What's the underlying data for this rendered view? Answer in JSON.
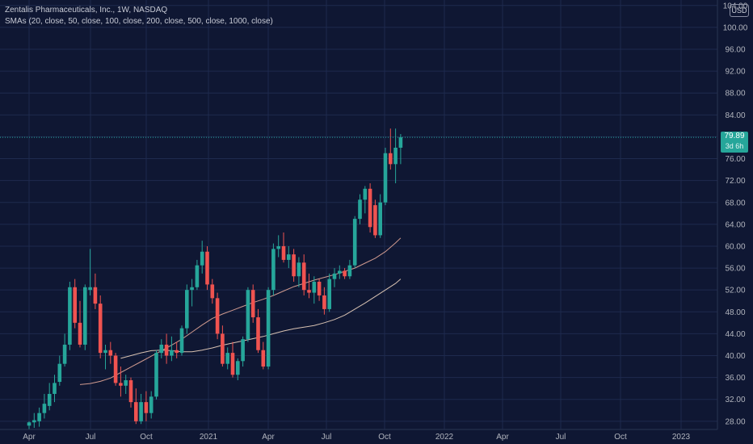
{
  "chart_data": {
    "type": "candlestick",
    "title": "Zentalis Pharmaceuticals, Inc., 1W, NASDAQ",
    "indicator_label": "SMAs (20, close, 50, close, 100, close, 200, close, 500, close, 1000, close)",
    "currency": "USD",
    "last_price": "79.89",
    "countdown": "3d 6h",
    "y_ticks": [
      "28.00",
      "32.00",
      "36.00",
      "40.00",
      "44.00",
      "48.00",
      "52.00",
      "56.00",
      "60.00",
      "64.00",
      "68.00",
      "72.00",
      "76.00",
      "80.00",
      "84.00",
      "88.00",
      "92.00",
      "96.00",
      "100.00",
      "104.00"
    ],
    "x_ticks": [
      "Apr",
      "Jul",
      "Oct",
      "2021",
      "Apr",
      "Jul",
      "Oct",
      "2022",
      "Apr",
      "Jul",
      "Oct",
      "2023"
    ],
    "ylim": [
      26.5,
      105
    ],
    "grid": true,
    "colors": {
      "up": "#26a69a",
      "down": "#ef5350",
      "sma20": "#d09a8f",
      "sma50": "#d8c2b2",
      "background": "#0f1733",
      "grid": "#1e2a4e",
      "axis_text": "#b2b5be"
    },
    "candles": [
      {
        "o": 27.2,
        "h": 28.0,
        "l": 26.5,
        "c": 27.8
      },
      {
        "o": 27.8,
        "h": 29.5,
        "l": 26.8,
        "c": 28.2
      },
      {
        "o": 28.0,
        "h": 30.5,
        "l": 27.0,
        "c": 29.5
      },
      {
        "o": 29.5,
        "h": 33.0,
        "l": 28.5,
        "c": 31.2
      },
      {
        "o": 30.8,
        "h": 35.0,
        "l": 30.0,
        "c": 33.0
      },
      {
        "o": 33.0,
        "h": 36.5,
        "l": 31.5,
        "c": 35.0
      },
      {
        "o": 35.2,
        "h": 40.0,
        "l": 34.5,
        "c": 38.5
      },
      {
        "o": 38.5,
        "h": 44.0,
        "l": 38.0,
        "c": 42.0
      },
      {
        "o": 42.0,
        "h": 53.5,
        "l": 41.0,
        "c": 52.5
      },
      {
        "o": 52.5,
        "h": 54.0,
        "l": 45.0,
        "c": 46.0
      },
      {
        "o": 46.0,
        "h": 50.0,
        "l": 41.5,
        "c": 42.0
      },
      {
        "o": 42.0,
        "h": 53.0,
        "l": 41.0,
        "c": 52.5
      },
      {
        "o": 52.0,
        "h": 59.5,
        "l": 51.0,
        "c": 52.5
      },
      {
        "o": 52.5,
        "h": 55.0,
        "l": 48.5,
        "c": 49.5
      },
      {
        "o": 49.5,
        "h": 51.0,
        "l": 39.5,
        "c": 40.5
      },
      {
        "o": 40.5,
        "h": 42.0,
        "l": 37.5,
        "c": 41.0
      },
      {
        "o": 41.0,
        "h": 42.5,
        "l": 38.5,
        "c": 40.0
      },
      {
        "o": 40.0,
        "h": 40.5,
        "l": 34.5,
        "c": 35.0
      },
      {
        "o": 35.0,
        "h": 38.0,
        "l": 32.5,
        "c": 34.5
      },
      {
        "o": 34.5,
        "h": 36.5,
        "l": 33.0,
        "c": 35.5
      },
      {
        "o": 35.5,
        "h": 36.0,
        "l": 30.5,
        "c": 31.5
      },
      {
        "o": 31.5,
        "h": 34.0,
        "l": 27.5,
        "c": 28.0
      },
      {
        "o": 28.0,
        "h": 33.0,
        "l": 27.5,
        "c": 31.5
      },
      {
        "o": 31.5,
        "h": 33.5,
        "l": 28.0,
        "c": 29.5
      },
      {
        "o": 29.5,
        "h": 33.5,
        "l": 28.5,
        "c": 32.5
      },
      {
        "o": 32.5,
        "h": 41.0,
        "l": 32.0,
        "c": 40.5
      },
      {
        "o": 40.5,
        "h": 43.0,
        "l": 39.5,
        "c": 42.0
      },
      {
        "o": 42.0,
        "h": 44.0,
        "l": 38.5,
        "c": 40.0
      },
      {
        "o": 40.0,
        "h": 43.5,
        "l": 39.0,
        "c": 41.0
      },
      {
        "o": 41.0,
        "h": 42.5,
        "l": 39.5,
        "c": 40.5
      },
      {
        "o": 40.5,
        "h": 45.5,
        "l": 40.0,
        "c": 45.0
      },
      {
        "o": 45.0,
        "h": 53.0,
        "l": 44.0,
        "c": 52.0
      },
      {
        "o": 52.0,
        "h": 54.0,
        "l": 49.0,
        "c": 52.5
      },
      {
        "o": 52.5,
        "h": 57.5,
        "l": 52.0,
        "c": 56.5
      },
      {
        "o": 56.5,
        "h": 61.0,
        "l": 55.0,
        "c": 59.0
      },
      {
        "o": 59.0,
        "h": 60.0,
        "l": 52.0,
        "c": 53.0
      },
      {
        "o": 53.0,
        "h": 54.0,
        "l": 49.5,
        "c": 50.5
      },
      {
        "o": 50.5,
        "h": 51.5,
        "l": 43.0,
        "c": 44.0
      },
      {
        "o": 44.0,
        "h": 45.5,
        "l": 38.0,
        "c": 38.5
      },
      {
        "o": 38.5,
        "h": 41.5,
        "l": 37.5,
        "c": 40.5
      },
      {
        "o": 40.5,
        "h": 42.5,
        "l": 36.0,
        "c": 36.5
      },
      {
        "o": 36.5,
        "h": 39.5,
        "l": 35.5,
        "c": 39.0
      },
      {
        "o": 39.0,
        "h": 43.5,
        "l": 38.0,
        "c": 43.0
      },
      {
        "o": 43.0,
        "h": 52.5,
        "l": 42.5,
        "c": 52.0
      },
      {
        "o": 52.0,
        "h": 53.0,
        "l": 46.0,
        "c": 47.0
      },
      {
        "o": 47.0,
        "h": 48.5,
        "l": 40.5,
        "c": 41.0
      },
      {
        "o": 41.0,
        "h": 42.5,
        "l": 37.5,
        "c": 38.0
      },
      {
        "o": 38.0,
        "h": 52.5,
        "l": 37.5,
        "c": 52.0
      },
      {
        "o": 52.0,
        "h": 60.5,
        "l": 51.0,
        "c": 59.5
      },
      {
        "o": 59.5,
        "h": 62.0,
        "l": 58.0,
        "c": 60.0
      },
      {
        "o": 60.0,
        "h": 62.5,
        "l": 57.0,
        "c": 57.5
      },
      {
        "o": 57.5,
        "h": 60.0,
        "l": 56.0,
        "c": 58.5
      },
      {
        "o": 58.5,
        "h": 59.5,
        "l": 53.5,
        "c": 54.5
      },
      {
        "o": 54.5,
        "h": 58.0,
        "l": 52.5,
        "c": 57.0
      },
      {
        "o": 57.0,
        "h": 58.5,
        "l": 51.0,
        "c": 52.0
      },
      {
        "o": 52.0,
        "h": 55.0,
        "l": 50.5,
        "c": 51.5
      },
      {
        "o": 51.5,
        "h": 54.5,
        "l": 49.5,
        "c": 53.5
      },
      {
        "o": 53.5,
        "h": 54.0,
        "l": 50.0,
        "c": 51.0
      },
      {
        "o": 51.0,
        "h": 52.5,
        "l": 47.5,
        "c": 48.5
      },
      {
        "o": 48.5,
        "h": 55.0,
        "l": 48.0,
        "c": 54.0
      },
      {
        "o": 54.0,
        "h": 56.0,
        "l": 52.5,
        "c": 55.0
      },
      {
        "o": 55.0,
        "h": 56.5,
        "l": 54.0,
        "c": 55.5
      },
      {
        "o": 55.5,
        "h": 56.0,
        "l": 54.0,
        "c": 54.5
      },
      {
        "o": 54.5,
        "h": 57.5,
        "l": 54.0,
        "c": 56.5
      },
      {
        "o": 56.5,
        "h": 65.5,
        "l": 56.0,
        "c": 65.0
      },
      {
        "o": 65.0,
        "h": 69.5,
        "l": 64.0,
        "c": 68.5
      },
      {
        "o": 68.5,
        "h": 71.0,
        "l": 66.0,
        "c": 70.5
      },
      {
        "o": 70.5,
        "h": 71.5,
        "l": 62.5,
        "c": 63.5
      },
      {
        "o": 67.5,
        "h": 68.5,
        "l": 61.5,
        "c": 62.0
      },
      {
        "o": 62.0,
        "h": 69.5,
        "l": 61.5,
        "c": 68.0
      },
      {
        "o": 68.0,
        "h": 78.0,
        "l": 67.5,
        "c": 77.0
      },
      {
        "o": 77.0,
        "h": 81.5,
        "l": 74.0,
        "c": 75.0
      },
      {
        "o": 75.0,
        "h": 81.5,
        "l": 71.5,
        "c": 78.0
      },
      {
        "o": 78.0,
        "h": 80.5,
        "l": 75.0,
        "c": 79.9
      }
    ],
    "series": [
      {
        "name": "",
        "color_key": "sma20",
        "points": [
          [
            10,
            34.7
          ],
          [
            12,
            34.9
          ],
          [
            14,
            35.3
          ],
          [
            16,
            35.9
          ],
          [
            18,
            36.9
          ],
          [
            20,
            37.9
          ],
          [
            22,
            38.9
          ],
          [
            24,
            39.9
          ],
          [
            26,
            40.9
          ],
          [
            28,
            41.9
          ],
          [
            30,
            43.0
          ],
          [
            32,
            44.3
          ],
          [
            34,
            45.6
          ],
          [
            36,
            46.8
          ],
          [
            38,
            47.6
          ],
          [
            40,
            48.3
          ],
          [
            42,
            49.0
          ],
          [
            44,
            49.7
          ],
          [
            46,
            50.3
          ],
          [
            48,
            51.0
          ],
          [
            50,
            51.8
          ],
          [
            52,
            52.6
          ],
          [
            54,
            53.2
          ],
          [
            56,
            53.8
          ],
          [
            58,
            54.3
          ],
          [
            60,
            54.8
          ],
          [
            62,
            55.4
          ],
          [
            64,
            56.0
          ],
          [
            66,
            56.9
          ],
          [
            68,
            57.8
          ],
          [
            70,
            59.0
          ],
          [
            72,
            60.6
          ],
          [
            73,
            61.5
          ]
        ]
      },
      {
        "name": "",
        "color_key": "sma50",
        "points": [
          [
            18,
            39.5
          ],
          [
            20,
            40.0
          ],
          [
            22,
            40.5
          ],
          [
            24,
            40.9
          ],
          [
            26,
            41.0
          ],
          [
            28,
            40.9
          ],
          [
            30,
            40.7
          ],
          [
            32,
            40.7
          ],
          [
            34,
            41.0
          ],
          [
            36,
            41.4
          ],
          [
            38,
            41.9
          ],
          [
            40,
            42.3
          ],
          [
            42,
            42.7
          ],
          [
            44,
            43.1
          ],
          [
            46,
            43.5
          ],
          [
            48,
            44.0
          ],
          [
            50,
            44.5
          ],
          [
            52,
            44.9
          ],
          [
            54,
            45.2
          ],
          [
            56,
            45.5
          ],
          [
            58,
            46.0
          ],
          [
            60,
            46.6
          ],
          [
            62,
            47.4
          ],
          [
            64,
            48.5
          ],
          [
            66,
            49.6
          ],
          [
            68,
            50.8
          ],
          [
            70,
            52.0
          ],
          [
            72,
            53.2
          ],
          [
            73,
            54.0
          ]
        ]
      }
    ]
  }
}
